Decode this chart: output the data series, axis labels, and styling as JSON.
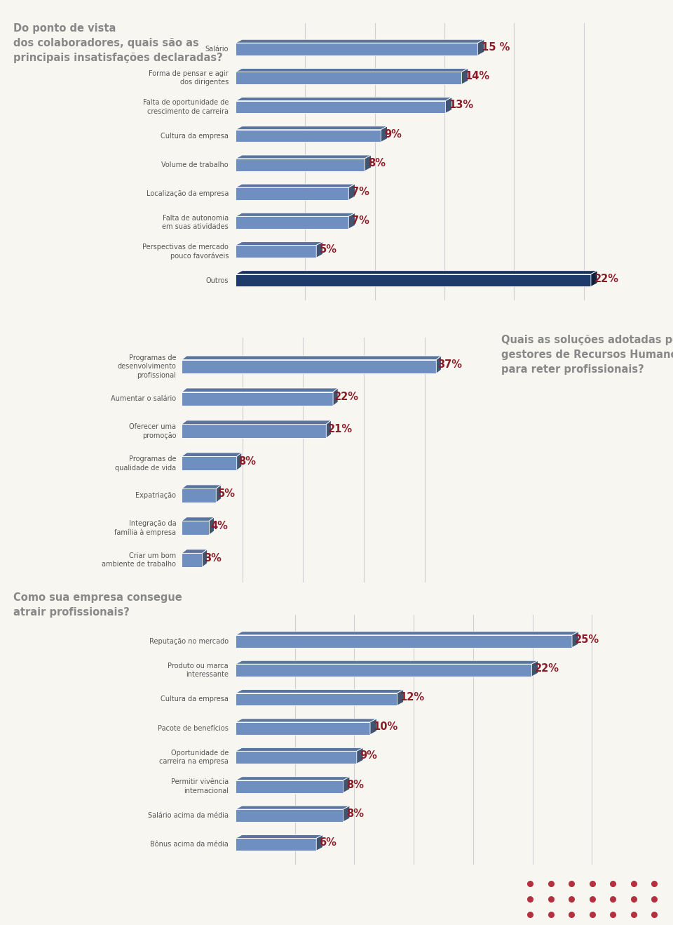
{
  "bg_color": "#f7f6f1",
  "footer_color": "#8c1b28",
  "chart1": {
    "title": "Do ponto de vista\ndos colaboradores, quais são as\nprincipais insatisfações declaradas?",
    "labels": [
      "Salário",
      "Forma de pensar e agir\ndos dirigentes",
      "Falta de oportunidade de\ncrescimento de carreira",
      "Cultura da empresa",
      "Volume de trabalho",
      "Localização da empresa",
      "Falta de autonomia\nem suas atividades",
      "Perspectivas de mercado\npouco favoráveis",
      "Outros"
    ],
    "values": [
      15,
      14,
      13,
      9,
      8,
      7,
      7,
      5,
      22
    ],
    "pct_labels": [
      "15 %",
      "14%",
      "13%",
      "9%",
      "8%",
      "7%",
      "7%",
      "5%",
      "22%"
    ],
    "bar_color_main": "#6e8fbf",
    "bar_color_outros": "#1e3a6b",
    "max_val": 25,
    "grid_ticks": [
      5,
      10,
      15,
      20,
      25
    ]
  },
  "chart2": {
    "title": "Quais as soluções adotadas pelos\ngestores de Recursos Humanos,\npara reter profissionais?",
    "labels": [
      "Programas de\ndesenvolvimento\nprofissional",
      "Aumentar o salário",
      "Oferecer uma\npromoção",
      "Programas de\nqualidade de vida",
      "Expatriação",
      "Integração da\nfamília à empresa",
      "Criar um bom\nambiente de trabalho"
    ],
    "values": [
      37,
      22,
      21,
      8,
      5,
      4,
      3
    ],
    "pct_labels": [
      "37%",
      "22%",
      "21%",
      "8%",
      "5%",
      "4%",
      "3%"
    ],
    "bar_color": "#6e8fbf",
    "max_val": 45,
    "grid_ticks": [
      10,
      20,
      30,
      40
    ]
  },
  "chart3": {
    "title": "Como sua empresa consegue\natrair profissionais?",
    "labels": [
      "Reputação no mercado",
      "Produto ou marca\ninteressante",
      "Cultura da empresa",
      "Pacote de benefícios",
      "Oportunidade de\ncarreira na empresa",
      "Permitir vivência\ninternacional",
      "Salário acima da média",
      "Bônus acima da média"
    ],
    "values": [
      25,
      22,
      12,
      10,
      9,
      8,
      8,
      6
    ],
    "pct_labels": [
      "25%",
      "22%",
      "12%",
      "10%",
      "9%",
      "8%",
      "8%",
      "6%"
    ],
    "bar_color": "#6e8fbf",
    "max_val": 30,
    "grid_ticks": [
      5,
      10,
      15,
      20,
      25,
      30
    ]
  },
  "title_color": "#888888",
  "pct_color": "#8c1b28",
  "label_color": "#555555",
  "grid_color": "#d0d0d0",
  "label_fontsize": 7.0,
  "pct_fontsize": 10.5,
  "title_fontsize": 10.5,
  "line_color": "#aaaaaa"
}
